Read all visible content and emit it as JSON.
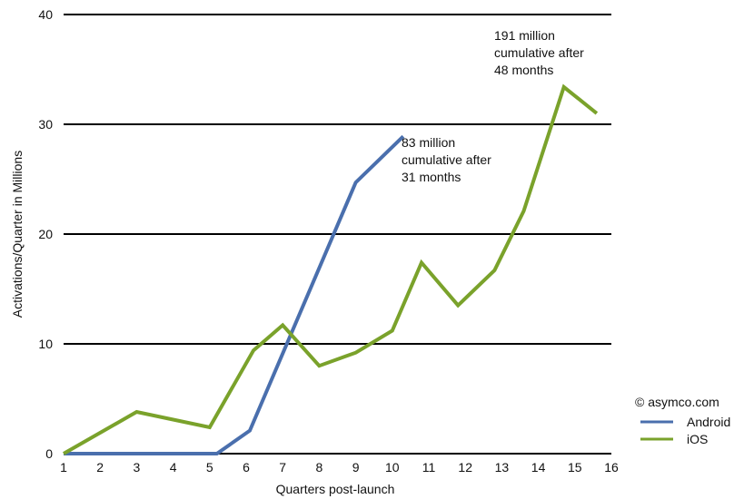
{
  "chart_data": {
    "type": "line",
    "xlabel": "Quarters post-launch",
    "ylabel": "Activations/Quarter in Millions",
    "xlim": [
      1,
      16
    ],
    "ylim": [
      0,
      40
    ],
    "x_ticks": [
      1,
      2,
      3,
      4,
      5,
      6,
      7,
      8,
      9,
      10,
      11,
      12,
      13,
      14,
      15,
      16
    ],
    "y_ticks": [
      0,
      10,
      20,
      30,
      40
    ],
    "grid": "horizontal",
    "series": [
      {
        "name": "Android",
        "color": "#4a6fad",
        "points": [
          [
            1,
            0
          ],
          [
            5.2,
            0
          ],
          [
            6.1,
            2.1
          ],
          [
            9,
            24.7
          ],
          [
            10.3,
            28.9
          ]
        ]
      },
      {
        "name": "iOS",
        "color": "#7aa22b",
        "points": [
          [
            1,
            0
          ],
          [
            2,
            1.9
          ],
          [
            3,
            3.8
          ],
          [
            4,
            3.1
          ],
          [
            5,
            2.4
          ],
          [
            6.2,
            9.4
          ],
          [
            7,
            11.7
          ],
          [
            8,
            8
          ],
          [
            9,
            9.2
          ],
          [
            10,
            11.2
          ],
          [
            10.8,
            17.4
          ],
          [
            11.8,
            13.5
          ],
          [
            12.8,
            16.7
          ],
          [
            13.6,
            22.1
          ],
          [
            14.7,
            33.4
          ],
          [
            15.6,
            31
          ]
        ]
      }
    ],
    "annotations": [
      {
        "lines": [
          "83 million",
          "cumulative after",
          "31 months"
        ]
      },
      {
        "lines": [
          "191 million",
          "cumulative after",
          "48 months"
        ]
      }
    ],
    "credit": "© asymco.com",
    "legend_position": "bottom-right"
  }
}
